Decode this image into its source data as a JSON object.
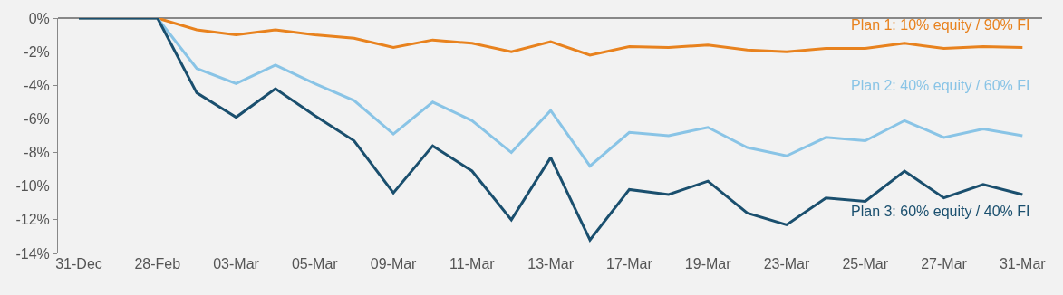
{
  "chart_data": {
    "type": "line",
    "categories": [
      "31-Dec",
      null,
      "28-Feb",
      null,
      "03-Mar",
      null,
      "05-Mar",
      null,
      "09-Mar",
      null,
      "11-Mar",
      null,
      "13-Mar",
      null,
      "17-Mar",
      null,
      "19-Mar",
      null,
      "23-Mar",
      null,
      "25-Mar",
      null,
      "27-Mar",
      null,
      "31-Mar"
    ],
    "series": [
      {
        "name": "Plan 1: 10% equity / 90% FI",
        "color": "#e8821e",
        "values": [
          0,
          0,
          0,
          -0.7,
          -1.0,
          -0.7,
          -1.0,
          -1.2,
          -1.75,
          -1.3,
          -1.5,
          -2.0,
          -1.4,
          -2.2,
          -1.7,
          -1.75,
          -1.6,
          -1.9,
          -2.0,
          -1.8,
          -1.8,
          -1.5,
          -1.8,
          -1.7,
          -1.75
        ]
      },
      {
        "name": "Plan 2: 40% equity / 60% FI",
        "color": "#89c4e6",
        "values": [
          0,
          0,
          0,
          -3.0,
          -3.9,
          -2.8,
          -3.9,
          -4.9,
          -6.9,
          -5.0,
          -6.1,
          -8.0,
          -5.5,
          -8.8,
          -6.8,
          -7.0,
          -6.5,
          -7.7,
          -8.2,
          -7.1,
          -7.3,
          -6.1,
          -7.1,
          -6.6,
          -7.0
        ]
      },
      {
        "name": "Plan 3: 60% equity / 40% FI",
        "color": "#1a4f6e",
        "values": [
          0,
          0,
          0,
          -4.45,
          -5.9,
          -4.2,
          -5.8,
          -7.3,
          -10.4,
          -7.6,
          -9.1,
          -12.0,
          -8.3,
          -13.2,
          -10.2,
          -10.5,
          -9.7,
          -11.6,
          -12.3,
          -10.7,
          -10.9,
          -9.1,
          -10.7,
          -9.9,
          -10.5
        ]
      }
    ],
    "ylim": [
      -14,
      0
    ],
    "yticks": [
      {
        "value": 0,
        "label": "0%"
      },
      {
        "value": -2,
        "label": "-2%"
      },
      {
        "value": -4,
        "label": "-4%"
      },
      {
        "value": -6,
        "label": "-6%"
      },
      {
        "value": -8,
        "label": "-8%"
      },
      {
        "value": -10,
        "label": "-10%"
      },
      {
        "value": -12,
        "label": "-12%"
      },
      {
        "value": -14,
        "label": "-14%"
      }
    ],
    "legend": false,
    "grid": false,
    "marker": "none",
    "line_style": "solid"
  }
}
